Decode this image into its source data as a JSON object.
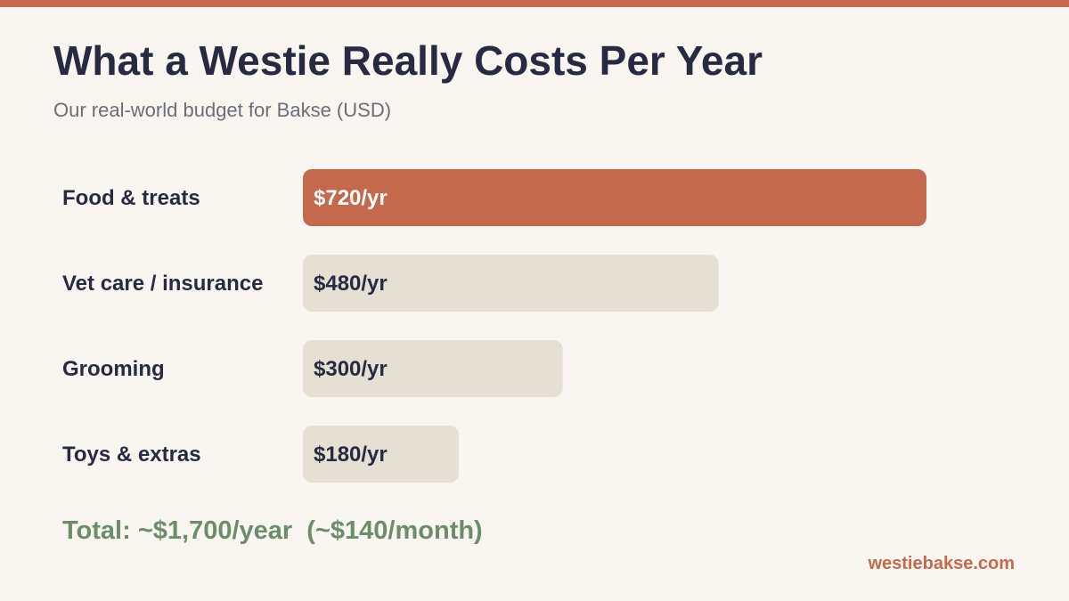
{
  "header": {
    "title": "What a Westie Really Costs Per Year",
    "subtitle": "Our real-world budget for Bakse (USD)"
  },
  "chart_data": {
    "type": "bar",
    "orientation": "horizontal",
    "title": "What a Westie Really Costs Per Year",
    "subtitle": "Our real-world budget for Bakse (USD)",
    "categories": [
      "Food & treats",
      "Vet care / insurance",
      "Grooming",
      "Toys & extras"
    ],
    "values": [
      720,
      480,
      300,
      180
    ],
    "data_labels": [
      "$720/yr",
      "$480/yr",
      "$300/yr",
      "$180/yr"
    ],
    "unit": "USD per year",
    "xlim": [
      0,
      720
    ],
    "grid": false,
    "legend": "none",
    "highlight_index": 0
  },
  "footer": {
    "total": "Total: ~$1,700/year  (~$140/month)",
    "site": "westiebakse.com"
  },
  "colors": {
    "accent": "#c4694b",
    "bar_default": "#e6dfd3",
    "text_dark": "#272a40",
    "text_muted": "#6b6e78",
    "total_green": "#6c8d6a",
    "background": "#f9f6f1",
    "label_on_accent": "#ffffff"
  }
}
